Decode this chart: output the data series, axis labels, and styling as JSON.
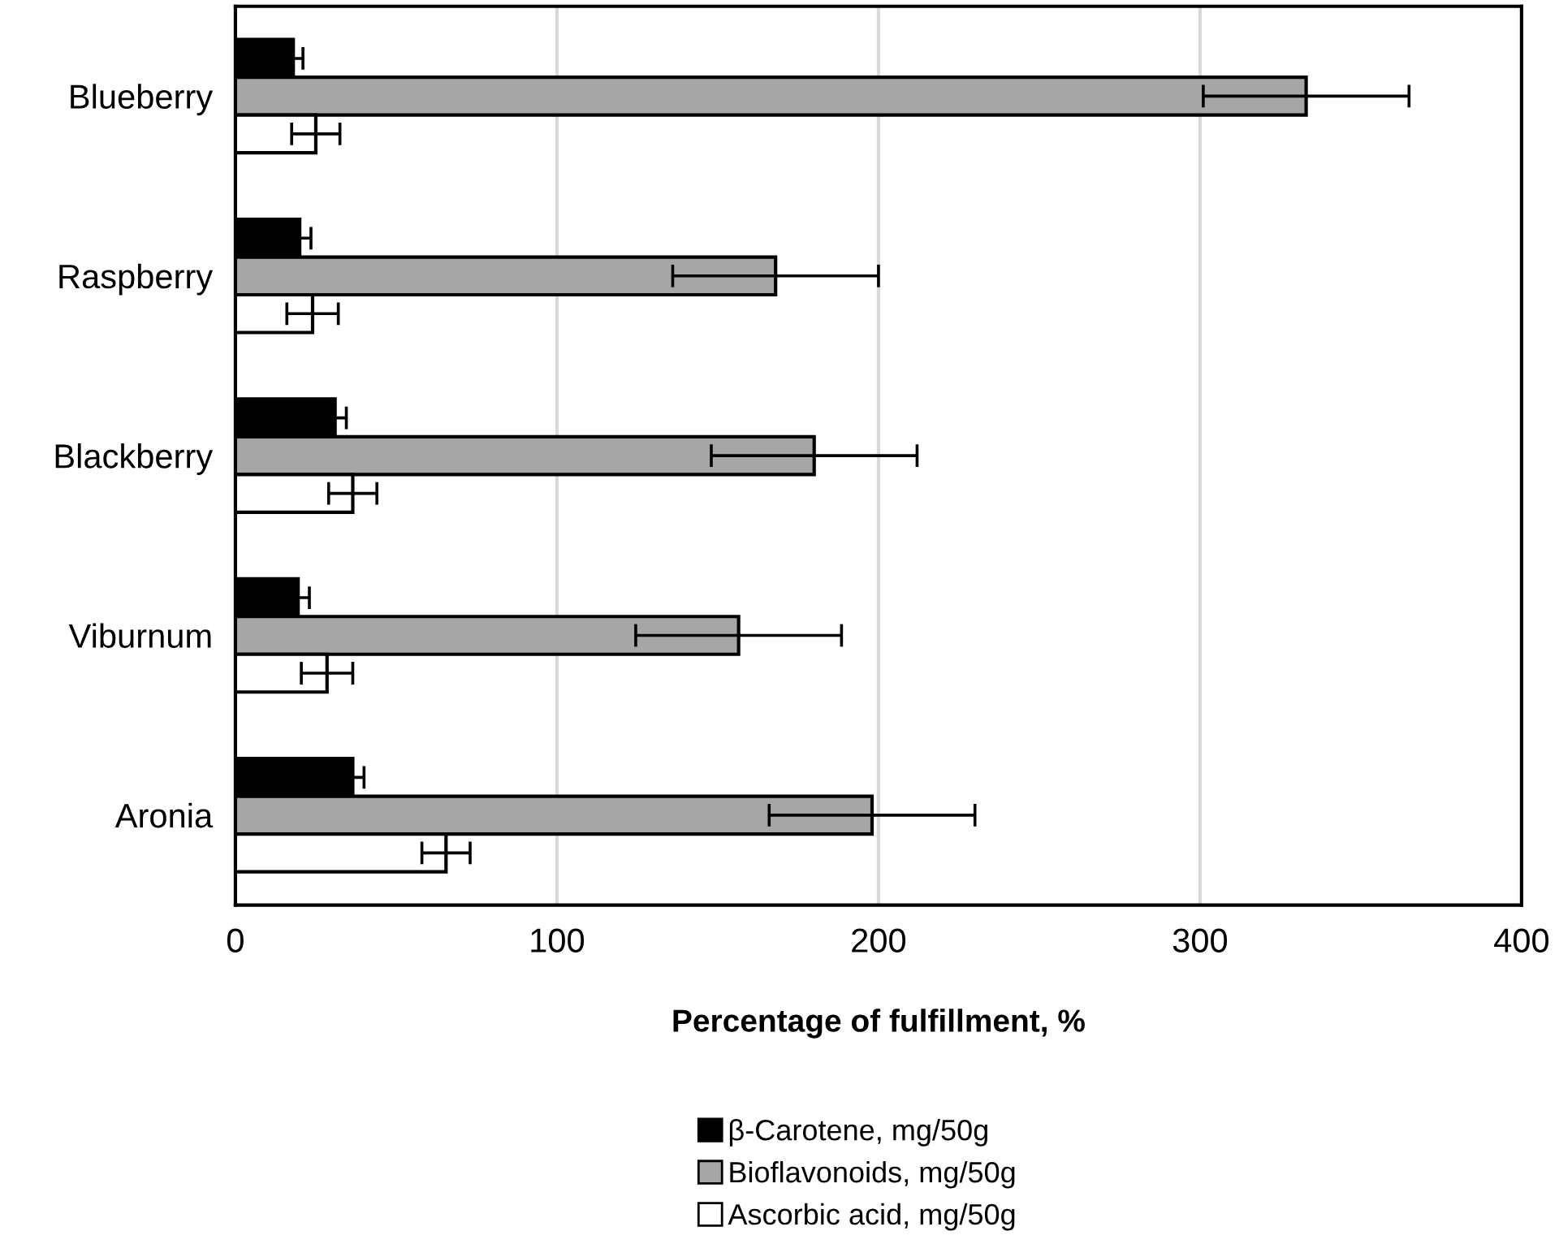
{
  "chart_data": {
    "type": "bar",
    "orientation": "horizontal",
    "xlabel": "Percentage of fulfillment, %",
    "categories": [
      "Blueberry",
      "Raspberry",
      "Blackberry",
      "Viburnum",
      "Aronia"
    ],
    "series": [
      {
        "name": "β-Carotene, mg/50g",
        "color": "#000000",
        "values": [
          18,
          20,
          31,
          19.5,
          36.5
        ],
        "errors": [
          3,
          3.5,
          3.5,
          3.5,
          3.5
        ]
      },
      {
        "name": "Bioflavonoids, mg/50g",
        "color": "#a6a6a6",
        "values": [
          333,
          168,
          180,
          156.5,
          198
        ],
        "errors": [
          32,
          32,
          32,
          32,
          32
        ]
      },
      {
        "name": "Ascorbic acid, mg/50g",
        "color": "#ffffff",
        "values": [
          25,
          24,
          36.5,
          28.5,
          65.5
        ],
        "errors": [
          7.5,
          8,
          7.5,
          8,
          7.5
        ]
      }
    ],
    "xlim": [
      0,
      400
    ],
    "xticks": [
      0,
      100,
      200,
      300,
      400
    ],
    "grid": "x",
    "legend": "bottom"
  }
}
